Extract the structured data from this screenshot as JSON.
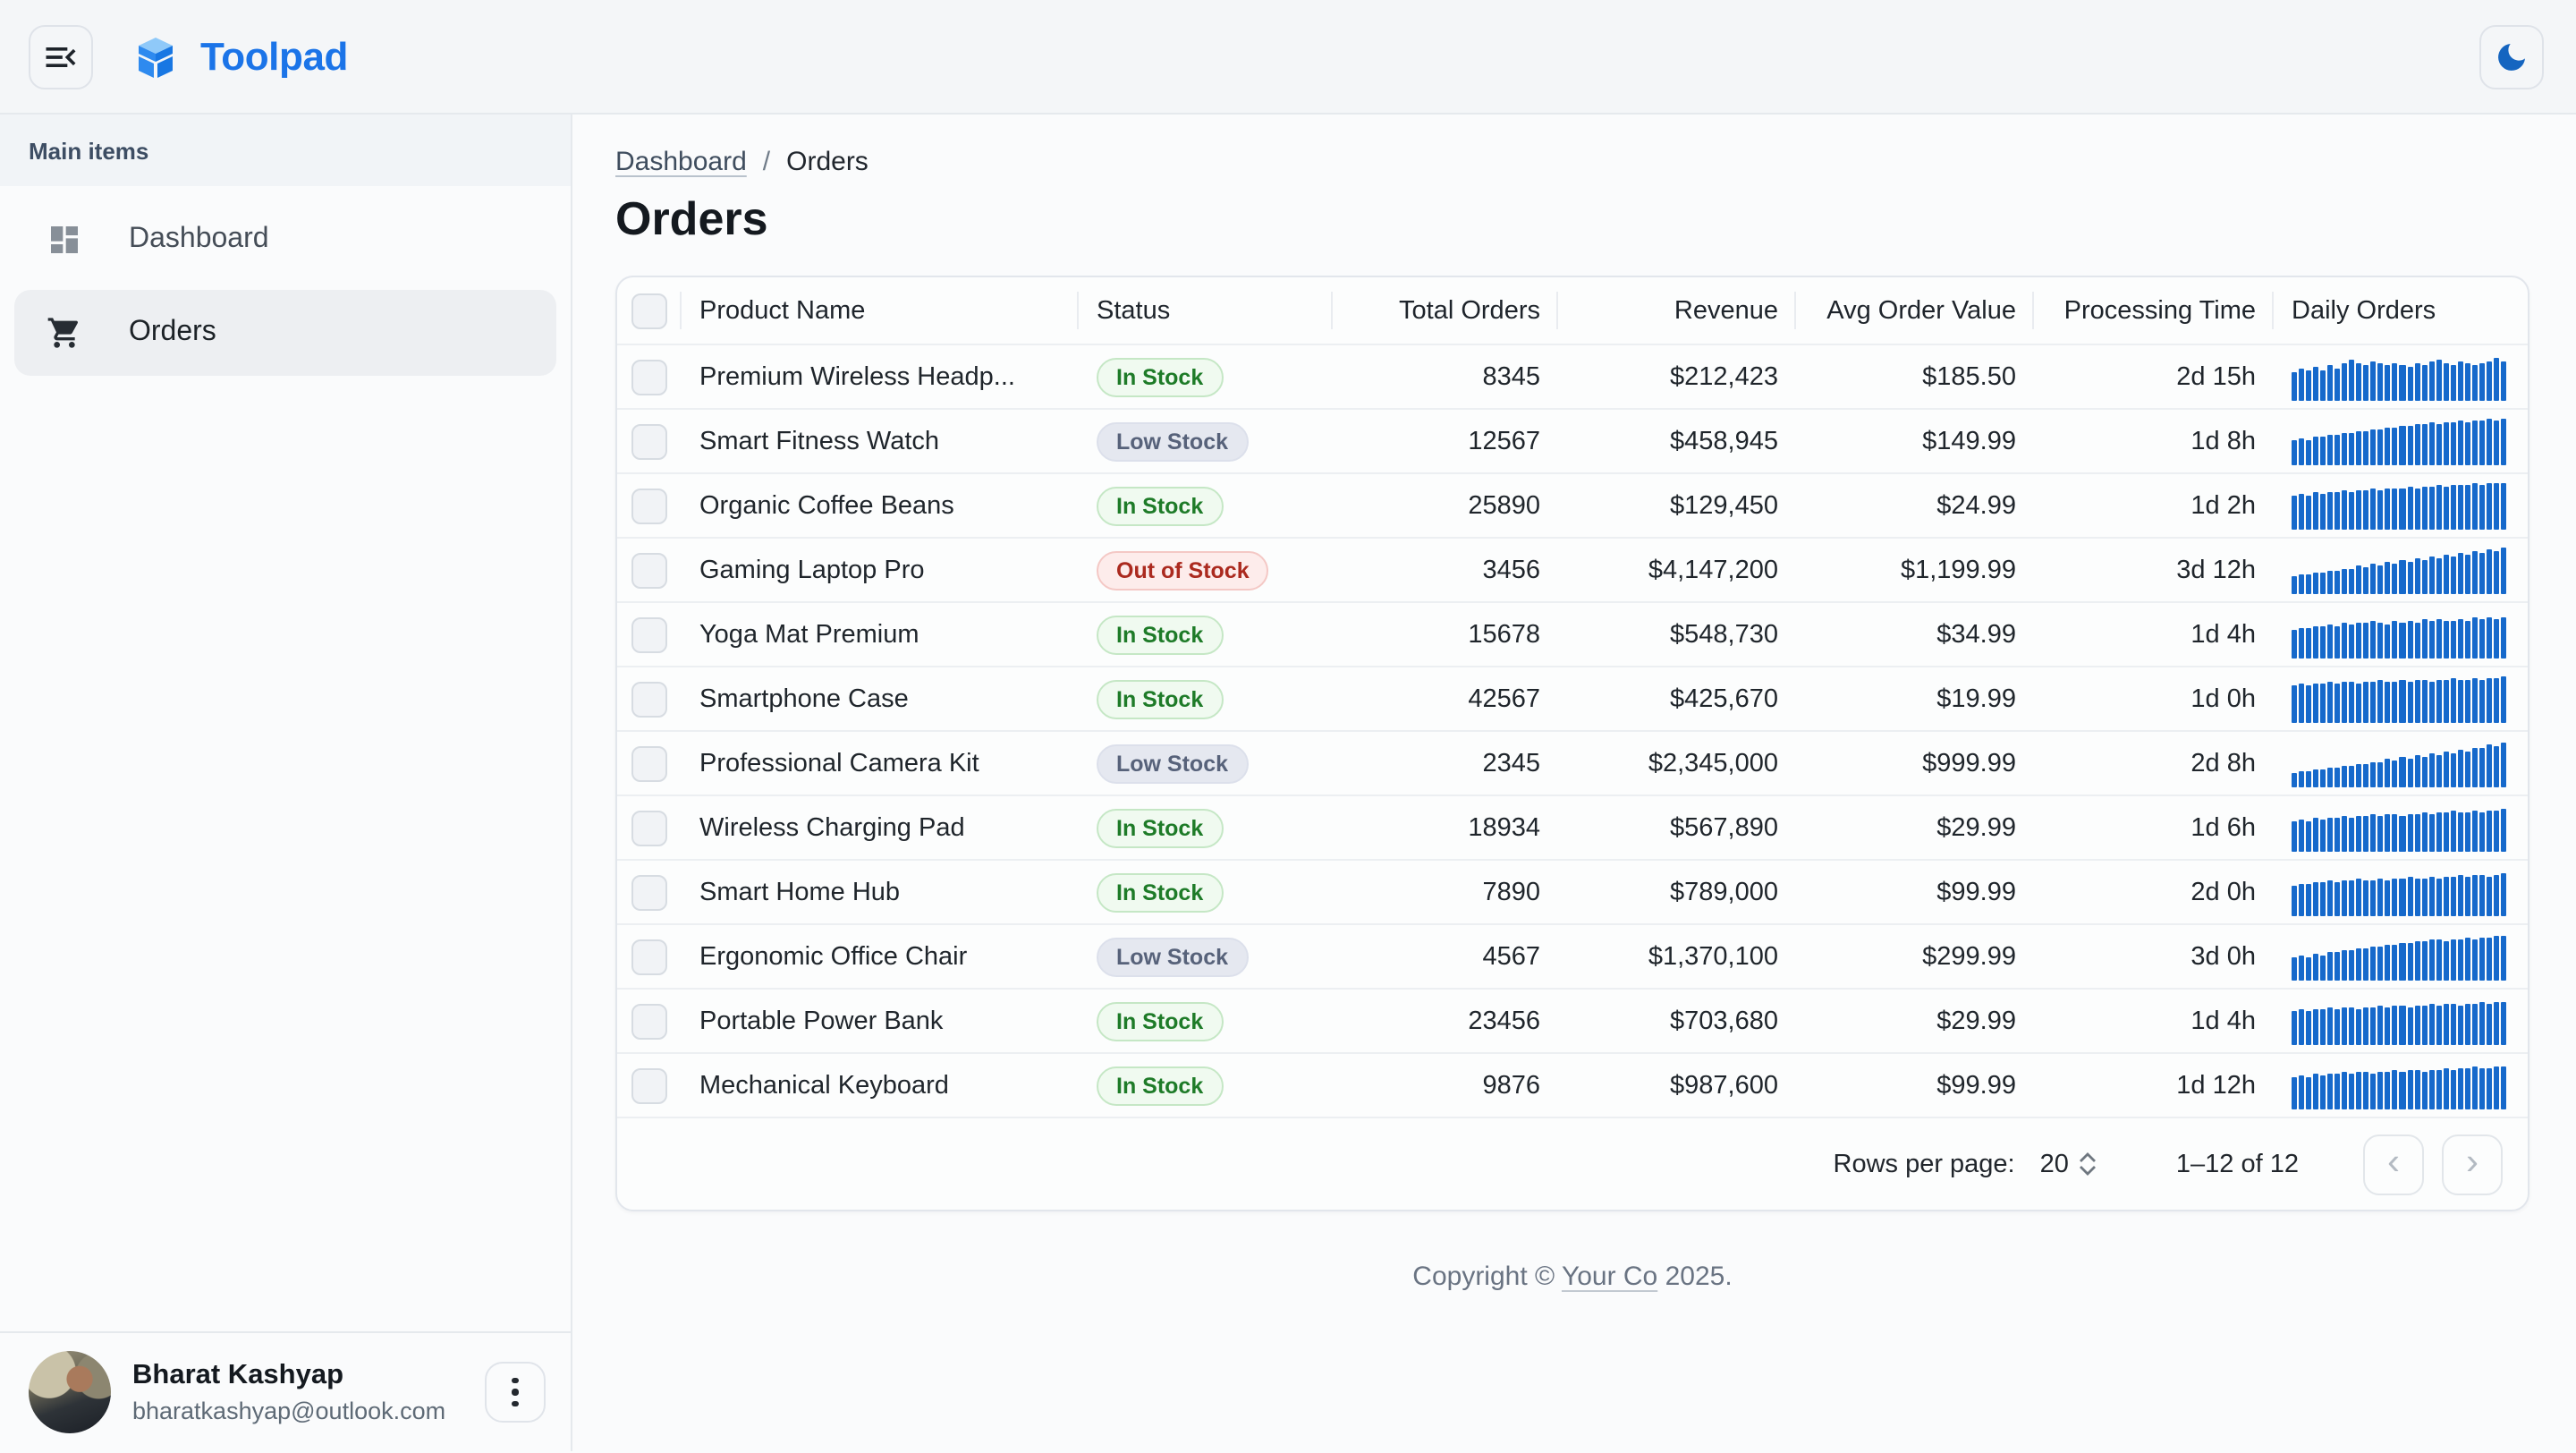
{
  "app_bar": {
    "title": "Toolpad",
    "menu_icon": "menu-open-icon",
    "theme_icon": "moon-icon"
  },
  "sidebar": {
    "section_label": "Main items",
    "items": [
      {
        "label": "Dashboard",
        "icon": "dashboard-icon",
        "selected": false
      },
      {
        "label": "Orders",
        "icon": "cart-icon",
        "selected": true
      }
    ],
    "user": {
      "name": "Bharat Kashyap",
      "email": "bharatkashyap@outlook.com"
    }
  },
  "breadcrumb": {
    "parent": "Dashboard",
    "separator": "/",
    "current": "Orders"
  },
  "page": {
    "title": "Orders"
  },
  "table": {
    "columns": [
      "Product Name",
      "Status",
      "Total Orders",
      "Revenue",
      "Avg Order Value",
      "Processing Time",
      "Daily Orders"
    ],
    "rows": [
      {
        "name": "Premium Wireless Headp...",
        "status": "In Stock",
        "total_orders": "8345",
        "revenue": "$212,423",
        "avg_order_value": "$185.50",
        "processing_time": "2d 15h",
        "daily_orders": [
          58,
          66,
          62,
          70,
          64,
          74,
          68,
          78,
          86,
          80,
          76,
          82,
          78,
          74,
          80,
          76,
          72,
          78,
          74,
          82,
          86,
          80,
          76,
          84,
          78,
          74,
          80,
          84,
          90,
          82
        ]
      },
      {
        "name": "Smart Fitness Watch",
        "status": "Low Stock",
        "total_orders": "12567",
        "revenue": "$458,945",
        "avg_order_value": "$149.99",
        "processing_time": "1d 8h",
        "daily_orders": [
          52,
          56,
          54,
          60,
          58,
          64,
          62,
          68,
          66,
          72,
          70,
          76,
          74,
          80,
          78,
          84,
          82,
          88,
          86,
          90,
          88,
          92,
          90,
          94,
          92,
          96,
          94,
          98,
          96,
          100
        ]
      },
      {
        "name": "Organic Coffee Beans",
        "status": "In Stock",
        "total_orders": "25890",
        "revenue": "$129,450",
        "avg_order_value": "$24.99",
        "processing_time": "1d 2h",
        "daily_orders": [
          70,
          74,
          72,
          78,
          76,
          80,
          78,
          82,
          80,
          84,
          82,
          86,
          84,
          88,
          86,
          88,
          90,
          88,
          92,
          90,
          94,
          92,
          96,
          94,
          96,
          98,
          96,
          98,
          100,
          98
        ]
      },
      {
        "name": "Gaming Laptop Pro",
        "status": "Out of Stock",
        "total_orders": "3456",
        "revenue": "$4,147,200",
        "avg_order_value": "$1,199.99",
        "processing_time": "3d 12h",
        "daily_orders": [
          38,
          42,
          40,
          46,
          44,
          50,
          48,
          54,
          52,
          58,
          56,
          62,
          60,
          66,
          64,
          70,
          68,
          74,
          72,
          78,
          76,
          82,
          80,
          86,
          84,
          90,
          88,
          94,
          92,
          98
        ]
      },
      {
        "name": "Yoga Mat Premium",
        "status": "In Stock",
        "total_orders": "15678",
        "revenue": "$548,730",
        "avg_order_value": "$34.99",
        "processing_time": "1d 4h",
        "daily_orders": [
          60,
          64,
          62,
          68,
          66,
          70,
          68,
          74,
          72,
          76,
          74,
          78,
          76,
          72,
          78,
          74,
          80,
          76,
          82,
          78,
          84,
          80,
          78,
          84,
          80,
          86,
          82,
          88,
          84,
          86
        ]
      },
      {
        "name": "Smartphone Case",
        "status": "In Stock",
        "total_orders": "42567",
        "revenue": "$425,670",
        "avg_order_value": "$19.99",
        "processing_time": "1d 0h",
        "daily_orders": [
          78,
          82,
          80,
          84,
          82,
          86,
          84,
          88,
          86,
          84,
          88,
          86,
          90,
          88,
          86,
          90,
          88,
          92,
          90,
          88,
          92,
          90,
          94,
          92,
          90,
          94,
          92,
          96,
          94,
          98
        ]
      },
      {
        "name": "Professional Camera Kit",
        "status": "Low Stock",
        "total_orders": "2345",
        "revenue": "$2,345,000",
        "avg_order_value": "$999.99",
        "processing_time": "2d 8h",
        "daily_orders": [
          30,
          34,
          32,
          38,
          36,
          42,
          40,
          46,
          44,
          50,
          48,
          54,
          52,
          58,
          56,
          62,
          60,
          66,
          64,
          70,
          68,
          74,
          72,
          78,
          76,
          84,
          82,
          90,
          88,
          96
        ]
      },
      {
        "name": "Wireless Charging Pad",
        "status": "In Stock",
        "total_orders": "18934",
        "revenue": "$567,890",
        "avg_order_value": "$29.99",
        "processing_time": "1d 6h",
        "daily_orders": [
          62,
          66,
          64,
          70,
          68,
          72,
          70,
          74,
          72,
          76,
          74,
          78,
          76,
          80,
          78,
          76,
          80,
          78,
          82,
          80,
          84,
          82,
          86,
          84,
          82,
          86,
          84,
          88,
          86,
          90
        ]
      },
      {
        "name": "Smart Home Hub",
        "status": "In Stock",
        "total_orders": "7890",
        "revenue": "$789,000",
        "avg_order_value": "$99.99",
        "processing_time": "2d 0h",
        "daily_orders": [
          64,
          68,
          66,
          72,
          70,
          74,
          72,
          76,
          74,
          78,
          76,
          74,
          78,
          76,
          80,
          78,
          82,
          80,
          78,
          82,
          80,
          84,
          82,
          86,
          84,
          88,
          86,
          84,
          88,
          90
        ]
      },
      {
        "name": "Ergonomic Office Chair",
        "status": "Low Stock",
        "total_orders": "4567",
        "revenue": "$1,370,100",
        "avg_order_value": "$299.99",
        "processing_time": "3d 0h",
        "daily_orders": [
          48,
          52,
          50,
          56,
          54,
          60,
          58,
          64,
          62,
          68,
          66,
          72,
          70,
          76,
          74,
          80,
          78,
          84,
          82,
          88,
          86,
          84,
          88,
          86,
          90,
          88,
          92,
          90,
          94,
          96
        ]
      },
      {
        "name": "Portable Power Bank",
        "status": "In Stock",
        "total_orders": "23456",
        "revenue": "$703,680",
        "avg_order_value": "$29.99",
        "processing_time": "1d 4h",
        "daily_orders": [
          70,
          74,
          72,
          76,
          74,
          78,
          76,
          80,
          78,
          76,
          80,
          78,
          82,
          80,
          84,
          82,
          80,
          84,
          82,
          86,
          84,
          88,
          86,
          84,
          88,
          86,
          90,
          88,
          92,
          90
        ]
      },
      {
        "name": "Mechanical Keyboard",
        "status": "In Stock",
        "total_orders": "9876",
        "revenue": "$987,600",
        "avg_order_value": "$99.99",
        "processing_time": "1d 12h",
        "daily_orders": [
          66,
          70,
          68,
          74,
          72,
          76,
          74,
          78,
          76,
          80,
          78,
          76,
          80,
          78,
          82,
          80,
          84,
          82,
          80,
          84,
          82,
          86,
          84,
          88,
          86,
          90,
          88,
          86,
          90,
          92
        ]
      }
    ]
  },
  "pagination": {
    "rows_per_page_label": "Rows per page:",
    "rows_per_page": "20",
    "range": "1–12 of 12",
    "prev_icon": "chevron-left-icon",
    "next_icon": "chevron-right-icon"
  },
  "footer": {
    "prefix": "Copyright © ",
    "link": "Your Co",
    "suffix": " 2025."
  },
  "colors": {
    "accent": "#1B74E8",
    "sparkline": "#1669CB",
    "moon": "#1565C0",
    "status_in_stock": "#1E7B28",
    "status_low_stock": "#57627A",
    "status_out_of_stock": "#AB2A1F"
  }
}
